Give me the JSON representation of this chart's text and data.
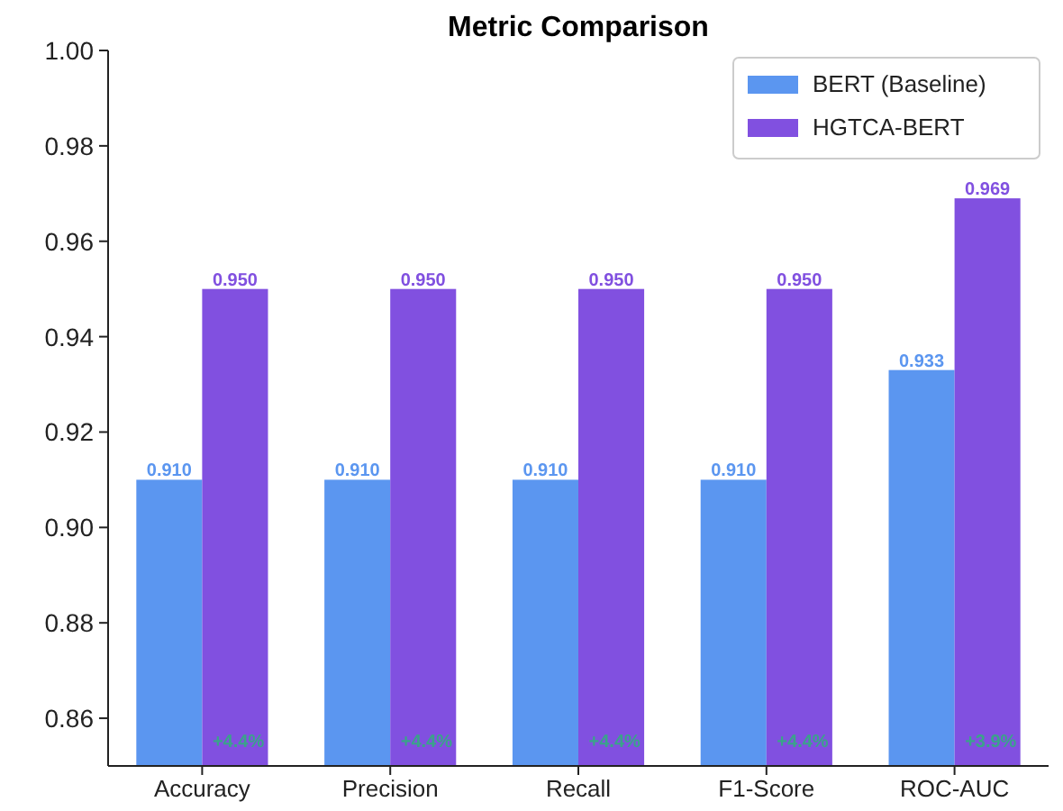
{
  "chart_data": {
    "type": "bar",
    "title": "Metric Comparison",
    "categories": [
      "Accuracy",
      "Precision",
      "Recall",
      "F1-Score",
      "ROC-AUC"
    ],
    "series": [
      {
        "name": "BERT (Baseline)",
        "color": "#5b96f0",
        "values": [
          0.91,
          0.91,
          0.91,
          0.91,
          0.933
        ],
        "value_labels": [
          "0.910",
          "0.910",
          "0.910",
          "0.910",
          "0.933"
        ]
      },
      {
        "name": "HGTCA-BERT",
        "color": "#8150e0",
        "values": [
          0.95,
          0.95,
          0.95,
          0.95,
          0.969
        ],
        "value_labels": [
          "0.950",
          "0.950",
          "0.950",
          "0.950",
          "0.969"
        ]
      }
    ],
    "ylim": [
      0.85,
      1.0
    ],
    "yticks": [
      0.86,
      0.88,
      {
        "value": 0.9,
        "label": "0.90"
      },
      0.92,
      0.94,
      0.96,
      0.98,
      {
        "value": 1.0,
        "label": "1.00"
      }
    ],
    "grid": false,
    "legend": "top right",
    "annotations": [
      {
        "text": "+4.4%",
        "x": "Accuracy",
        "y": 0.854
      },
      {
        "text": "+4.4%",
        "x": "Precision",
        "y": 0.854
      },
      {
        "text": "+4.4%",
        "x": "Recall",
        "y": 0.854
      },
      {
        "text": "+4.4%",
        "x": "F1-Score",
        "y": 0.854
      },
      {
        "text": "+3.9%",
        "x": "ROC-AUC",
        "y": 0.854
      }
    ]
  }
}
